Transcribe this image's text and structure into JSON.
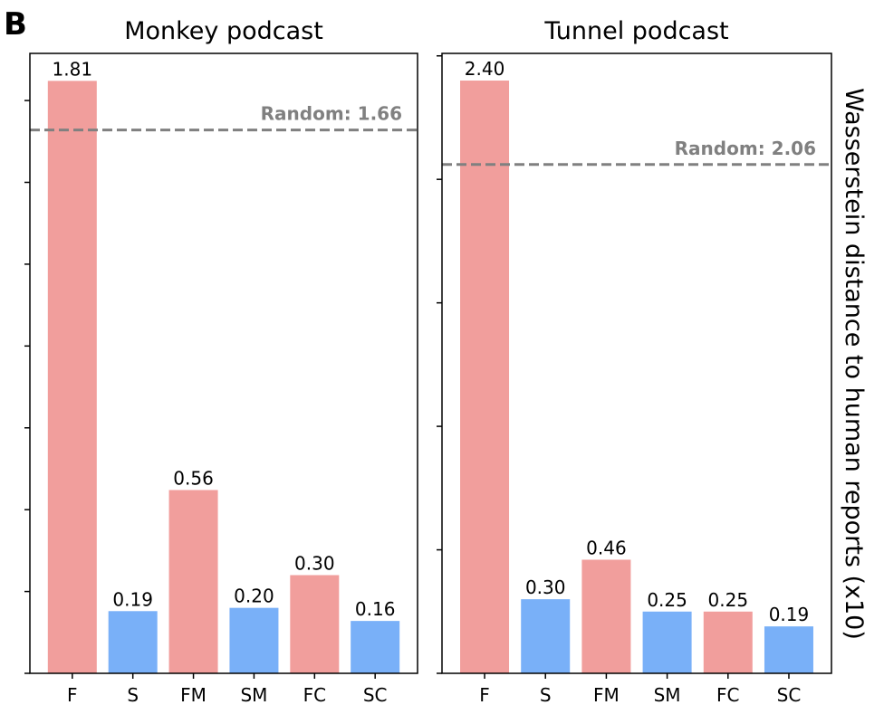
{
  "panel_label": "B",
  "ylabel": "Wasserstein distance to human reports (x10)",
  "colors": {
    "F": "#f19e9c",
    "S": "#79b0f8",
    "random": "#808080"
  },
  "chart_data": [
    {
      "type": "bar",
      "title": "Monkey podcast",
      "categories": [
        "F",
        "S",
        "FM",
        "SM",
        "FC",
        "SC"
      ],
      "values": [
        1.81,
        0.19,
        0.56,
        0.2,
        0.3,
        0.16
      ],
      "labels": [
        "1.81",
        "0.19",
        "0.56",
        "0.20",
        "0.30",
        "0.16"
      ],
      "bar_colors": [
        "F",
        "S",
        "F",
        "S",
        "F",
        "S"
      ],
      "random": 1.66,
      "random_label": "Random: 1.66",
      "ylim": [
        0,
        1.894
      ],
      "yticks": [
        0,
        0.25,
        0.5,
        0.75,
        1.0,
        1.25,
        1.5,
        1.75
      ]
    },
    {
      "type": "bar",
      "title": "Tunnel podcast",
      "categories": [
        "F",
        "S",
        "FM",
        "SM",
        "FC",
        "SC"
      ],
      "values": [
        2.4,
        0.3,
        0.46,
        0.25,
        0.25,
        0.19
      ],
      "labels": [
        "2.40",
        "0.30",
        "0.46",
        "0.25",
        "0.25",
        "0.19"
      ],
      "bar_colors": [
        "F",
        "S",
        "F",
        "S",
        "F",
        "S"
      ],
      "random": 2.06,
      "random_label": "Random: 2.06",
      "ylim": [
        0,
        2.51
      ],
      "yticks": [
        0,
        0.5,
        1.0,
        1.5,
        2.0,
        2.5
      ]
    }
  ]
}
